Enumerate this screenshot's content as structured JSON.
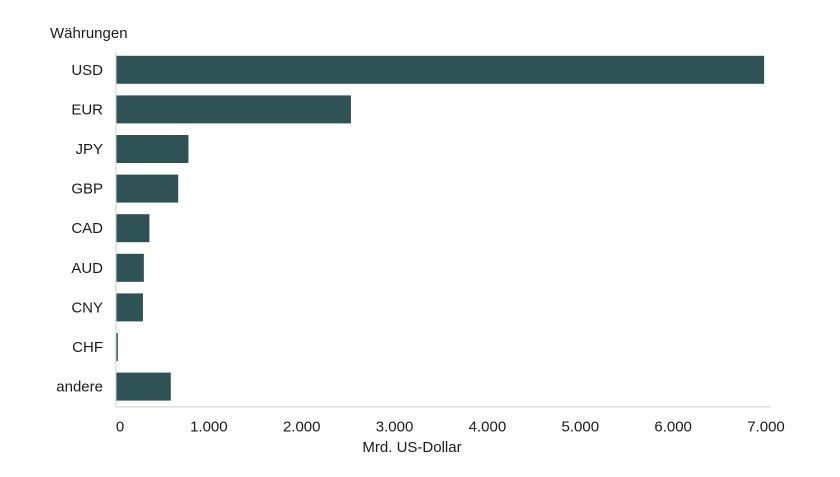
{
  "chart_data": {
    "type": "bar",
    "orientation": "horizontal",
    "ylabel": "Währungen",
    "xlabel": "Mrd. US-Dollar",
    "categories": [
      "USD",
      "EUR",
      "JPY",
      "GBP",
      "CAD",
      "AUD",
      "CNY",
      "CHF",
      "andere"
    ],
    "values": [
      6980,
      2530,
      780,
      670,
      360,
      300,
      290,
      20,
      590
    ],
    "xlim": [
      0,
      7000
    ],
    "xticks": [
      0,
      1000,
      2000,
      3000,
      4000,
      5000,
      6000,
      7000
    ],
    "xtick_labels": [
      "0",
      "1.000",
      "2.000",
      "3.000",
      "4.000",
      "5.000",
      "6.000",
      "7.000"
    ],
    "grid": false,
    "legend": "none",
    "bar_color": "#2f5254"
  }
}
